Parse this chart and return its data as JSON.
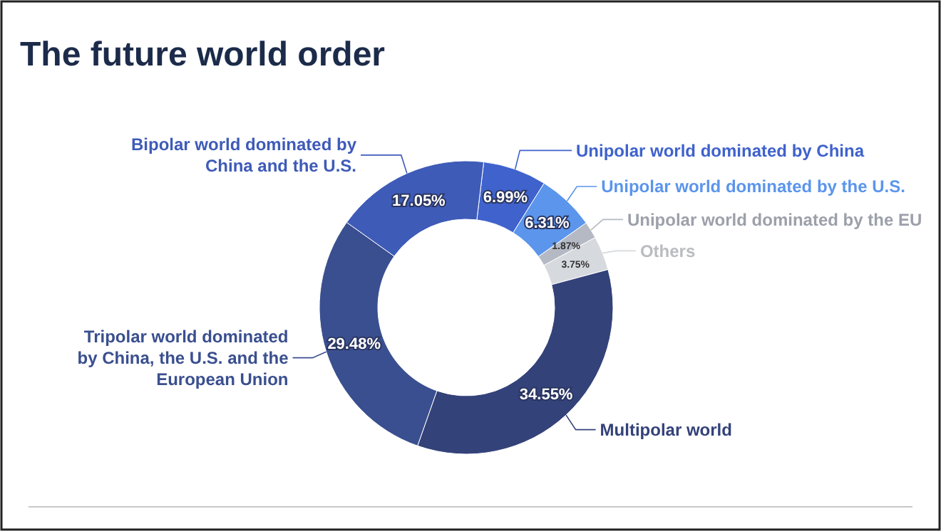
{
  "chart_data": {
    "type": "donut",
    "title": "The future world order",
    "categories": [
      "Unipolar world dominated by China",
      "Unipolar world dominated by the U.S.",
      "Unipolar world dominated by the EU",
      "Others",
      "Multipolar world",
      "Tripolar world dominated by China, the U.S. and the European Union",
      "Bipolar world dominated by China and the U.S."
    ],
    "values": [
      6.99,
      6.31,
      1.87,
      3.75,
      34.55,
      29.48,
      17.05
    ],
    "colors": [
      "#3f62cc",
      "#5b95ec",
      "#b4b9c4",
      "#d6d9de",
      "#34427a",
      "#3a4f8f",
      "#3e5bb8"
    ],
    "value_labels": [
      "6.99%",
      "6.31%",
      "1.87%",
      "3.75%",
      "34.55%",
      "29.48%",
      "17.05%"
    ]
  }
}
